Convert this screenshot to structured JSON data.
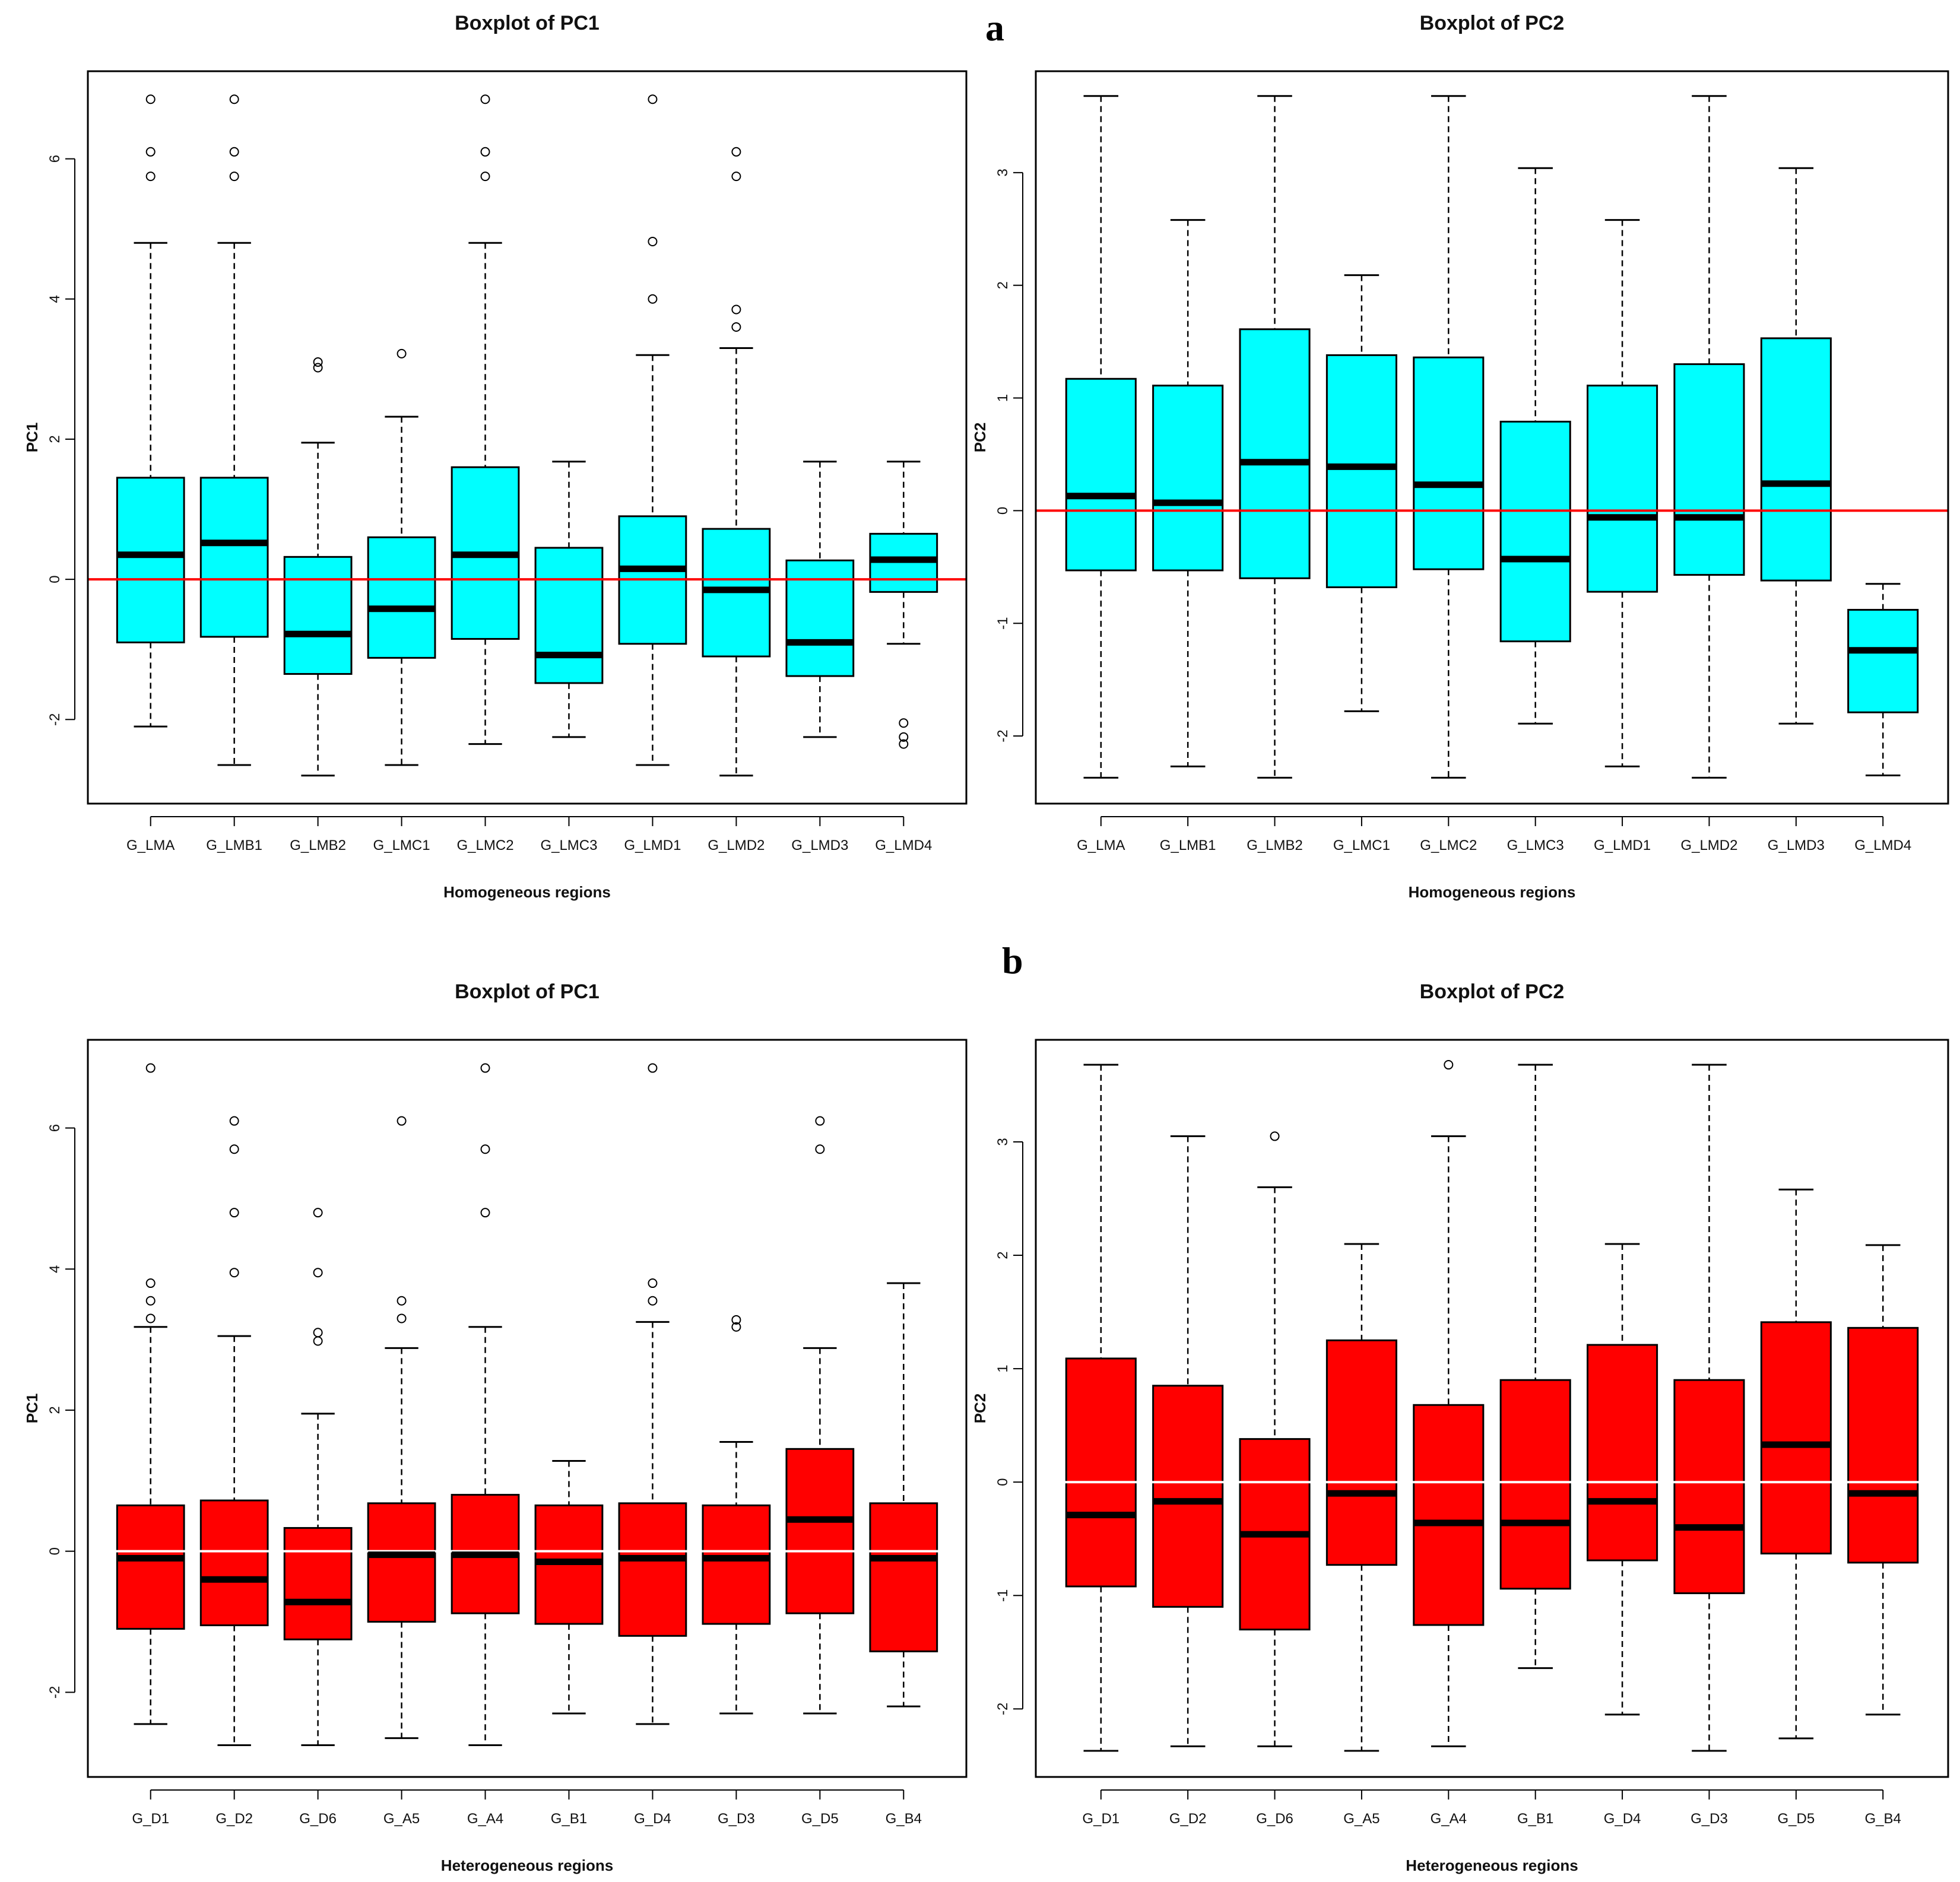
{
  "panel_labels": {
    "a": "a",
    "b": "b"
  },
  "chart_data": [
    {
      "type": "boxplot",
      "title": "Boxplot of PC1",
      "xlabel": "Homogeneous regions",
      "ylabel": "PC1",
      "ylim": [
        -3.2,
        7.25
      ],
      "yticks": [
        -2,
        0,
        2,
        4,
        6
      ],
      "box_color": "#00FFFF",
      "reference_line": {
        "y": 0,
        "color": "#FF0000"
      },
      "categories": [
        "G_LMA",
        "G_LMB1",
        "G_LMB2",
        "G_LMC1",
        "G_LMC2",
        "G_LMC3",
        "G_LMD1",
        "G_LMD2",
        "G_LMD3",
        "G_LMD4"
      ],
      "boxes": [
        {
          "low": -2.1,
          "q1": -0.9,
          "median": 0.35,
          "q3": 1.45,
          "high": 4.8,
          "outliers": [
            5.75,
            6.1,
            6.85
          ]
        },
        {
          "low": -2.65,
          "q1": -0.82,
          "median": 0.52,
          "q3": 1.45,
          "high": 4.8,
          "outliers": [
            5.75,
            6.1,
            6.85
          ]
        },
        {
          "low": -2.8,
          "q1": -1.35,
          "median": -0.78,
          "q3": 0.32,
          "high": 1.95,
          "outliers": [
            3.02,
            3.1
          ]
        },
        {
          "low": -2.65,
          "q1": -1.12,
          "median": -0.42,
          "q3": 0.6,
          "high": 2.32,
          "outliers": [
            3.22
          ]
        },
        {
          "low": -2.35,
          "q1": -0.85,
          "median": 0.35,
          "q3": 1.6,
          "high": 4.8,
          "outliers": [
            5.75,
            6.1,
            6.85
          ]
        },
        {
          "low": -2.25,
          "q1": -1.48,
          "median": -1.08,
          "q3": 0.45,
          "high": 1.68,
          "outliers": []
        },
        {
          "low": -2.65,
          "q1": -0.92,
          "median": 0.15,
          "q3": 0.9,
          "high": 3.2,
          "outliers": [
            4.0,
            4.82,
            6.85
          ]
        },
        {
          "low": -2.8,
          "q1": -1.1,
          "median": -0.15,
          "q3": 0.72,
          "high": 3.3,
          "outliers": [
            3.6,
            3.85,
            5.75,
            6.1
          ]
        },
        {
          "low": -2.25,
          "q1": -1.38,
          "median": -0.9,
          "q3": 0.27,
          "high": 1.68,
          "outliers": []
        },
        {
          "low": -0.92,
          "q1": -0.18,
          "median": 0.28,
          "q3": 0.65,
          "high": 1.68,
          "outliers": [
            -2.05,
            -2.25,
            -2.35
          ]
        }
      ]
    },
    {
      "type": "boxplot",
      "title": "Boxplot of PC2",
      "xlabel": "Homogeneous regions",
      "ylabel": "PC2",
      "ylim": [
        -2.6,
        3.9
      ],
      "yticks": [
        -2,
        -1,
        0,
        1,
        2,
        3
      ],
      "box_color": "#00FFFF",
      "reference_line": {
        "y": 0,
        "color": "#FF0000"
      },
      "categories": [
        "G_LMA",
        "G_LMB1",
        "G_LMB2",
        "G_LMC1",
        "G_LMC2",
        "G_LMC3",
        "G_LMD1",
        "G_LMD2",
        "G_LMD3",
        "G_LMD4"
      ],
      "boxes": [
        {
          "low": -2.37,
          "q1": -0.53,
          "median": 0.13,
          "q3": 1.17,
          "high": 3.68,
          "outliers": []
        },
        {
          "low": -2.27,
          "q1": -0.53,
          "median": 0.07,
          "q3": 1.11,
          "high": 2.58,
          "outliers": []
        },
        {
          "low": -2.37,
          "q1": -0.6,
          "median": 0.43,
          "q3": 1.61,
          "high": 3.68,
          "outliers": []
        },
        {
          "low": -1.78,
          "q1": -0.68,
          "median": 0.39,
          "q3": 1.38,
          "high": 2.09,
          "outliers": []
        },
        {
          "low": -2.37,
          "q1": -0.52,
          "median": 0.23,
          "q3": 1.36,
          "high": 3.68,
          "outliers": []
        },
        {
          "low": -1.89,
          "q1": -1.16,
          "median": -0.43,
          "q3": 0.79,
          "high": 3.04,
          "outliers": []
        },
        {
          "low": -2.27,
          "q1": -0.72,
          "median": -0.06,
          "q3": 1.11,
          "high": 2.58,
          "outliers": []
        },
        {
          "low": -2.37,
          "q1": -0.57,
          "median": -0.06,
          "q3": 1.3,
          "high": 3.68,
          "outliers": []
        },
        {
          "low": -1.89,
          "q1": -0.62,
          "median": 0.24,
          "q3": 1.53,
          "high": 3.04,
          "outliers": []
        },
        {
          "low": -2.35,
          "q1": -1.79,
          "median": -1.24,
          "q3": -0.88,
          "high": -0.65,
          "outliers": []
        }
      ]
    },
    {
      "type": "boxplot",
      "title": "Boxplot of PC1",
      "xlabel": "Heterogeneous regions",
      "ylabel": "PC1",
      "ylim": [
        -3.2,
        7.25
      ],
      "yticks": [
        -2,
        0,
        2,
        4,
        6
      ],
      "box_color": "#FF0000",
      "reference_line": {
        "y": 0,
        "color": "#FFFFFF"
      },
      "categories": [
        "G_D1",
        "G_D2",
        "G_D6",
        "G_A5",
        "G_A4",
        "G_B1",
        "G_D4",
        "G_D3",
        "G_D5",
        "G_B4"
      ],
      "boxes": [
        {
          "low": -2.45,
          "q1": -1.1,
          "median": -0.1,
          "q3": 0.65,
          "high": 3.18,
          "outliers": [
            3.3,
            3.55,
            3.8,
            6.85
          ]
        },
        {
          "low": -2.75,
          "q1": -1.05,
          "median": -0.4,
          "q3": 0.72,
          "high": 3.05,
          "outliers": [
            3.95,
            4.8,
            5.7,
            6.1
          ]
        },
        {
          "low": -2.75,
          "q1": -1.25,
          "median": -0.72,
          "q3": 0.33,
          "high": 1.95,
          "outliers": [
            2.98,
            3.1,
            3.95,
            4.8
          ]
        },
        {
          "low": -2.65,
          "q1": -1.0,
          "median": -0.05,
          "q3": 0.68,
          "high": 2.88,
          "outliers": [
            3.3,
            3.55,
            6.1
          ]
        },
        {
          "low": -2.75,
          "q1": -0.88,
          "median": -0.05,
          "q3": 0.8,
          "high": 3.18,
          "outliers": [
            4.8,
            5.7,
            6.85
          ]
        },
        {
          "low": -2.3,
          "q1": -1.03,
          "median": -0.15,
          "q3": 0.65,
          "high": 1.28,
          "outliers": []
        },
        {
          "low": -2.45,
          "q1": -1.2,
          "median": -0.1,
          "q3": 0.68,
          "high": 3.25,
          "outliers": [
            3.55,
            3.8,
            6.85
          ]
        },
        {
          "low": -2.3,
          "q1": -1.03,
          "median": -0.1,
          "q3": 0.65,
          "high": 1.55,
          "outliers": [
            3.18,
            3.28
          ]
        },
        {
          "low": -2.3,
          "q1": -0.88,
          "median": 0.45,
          "q3": 1.45,
          "high": 2.88,
          "outliers": [
            5.7,
            6.1
          ]
        },
        {
          "low": -2.2,
          "q1": -1.42,
          "median": -0.1,
          "q3": 0.68,
          "high": 3.8,
          "outliers": []
        }
      ]
    },
    {
      "type": "boxplot",
      "title": "Boxplot of PC2",
      "xlabel": "Heterogeneous regions",
      "ylabel": "PC2",
      "ylim": [
        -2.6,
        3.9
      ],
      "yticks": [
        -2,
        -1,
        0,
        1,
        2,
        3
      ],
      "box_color": "#FF0000",
      "reference_line": {
        "y": 0,
        "color": "#FFFFFF"
      },
      "categories": [
        "G_D1",
        "G_D2",
        "G_D6",
        "G_A5",
        "G_A4",
        "G_B1",
        "G_D4",
        "G_D3",
        "G_D5",
        "G_B4"
      ],
      "boxes": [
        {
          "low": -2.37,
          "q1": -0.92,
          "median": -0.29,
          "q3": 1.09,
          "high": 3.68,
          "outliers": []
        },
        {
          "low": -2.33,
          "q1": -1.1,
          "median": -0.17,
          "q3": 0.85,
          "high": 3.05,
          "outliers": []
        },
        {
          "low": -2.33,
          "q1": -1.3,
          "median": -0.46,
          "q3": 0.38,
          "high": 2.6,
          "outliers": [
            3.05
          ]
        },
        {
          "low": -2.37,
          "q1": -0.73,
          "median": -0.1,
          "q3": 1.25,
          "high": 2.1,
          "outliers": []
        },
        {
          "low": -2.33,
          "q1": -1.26,
          "median": -0.36,
          "q3": 0.68,
          "high": 3.05,
          "outliers": [
            3.68
          ]
        },
        {
          "low": -1.64,
          "q1": -0.94,
          "median": -0.36,
          "q3": 0.9,
          "high": 3.68,
          "outliers": []
        },
        {
          "low": -2.05,
          "q1": -0.69,
          "median": -0.17,
          "q3": 1.21,
          "high": 2.1,
          "outliers": []
        },
        {
          "low": -2.37,
          "q1": -0.98,
          "median": -0.4,
          "q3": 0.9,
          "high": 3.68,
          "outliers": []
        },
        {
          "low": -2.26,
          "q1": -0.63,
          "median": 0.33,
          "q3": 1.41,
          "high": 2.58,
          "outliers": []
        },
        {
          "low": -2.05,
          "q1": -0.71,
          "median": -0.1,
          "q3": 1.36,
          "high": 2.09,
          "outliers": []
        }
      ]
    }
  ]
}
